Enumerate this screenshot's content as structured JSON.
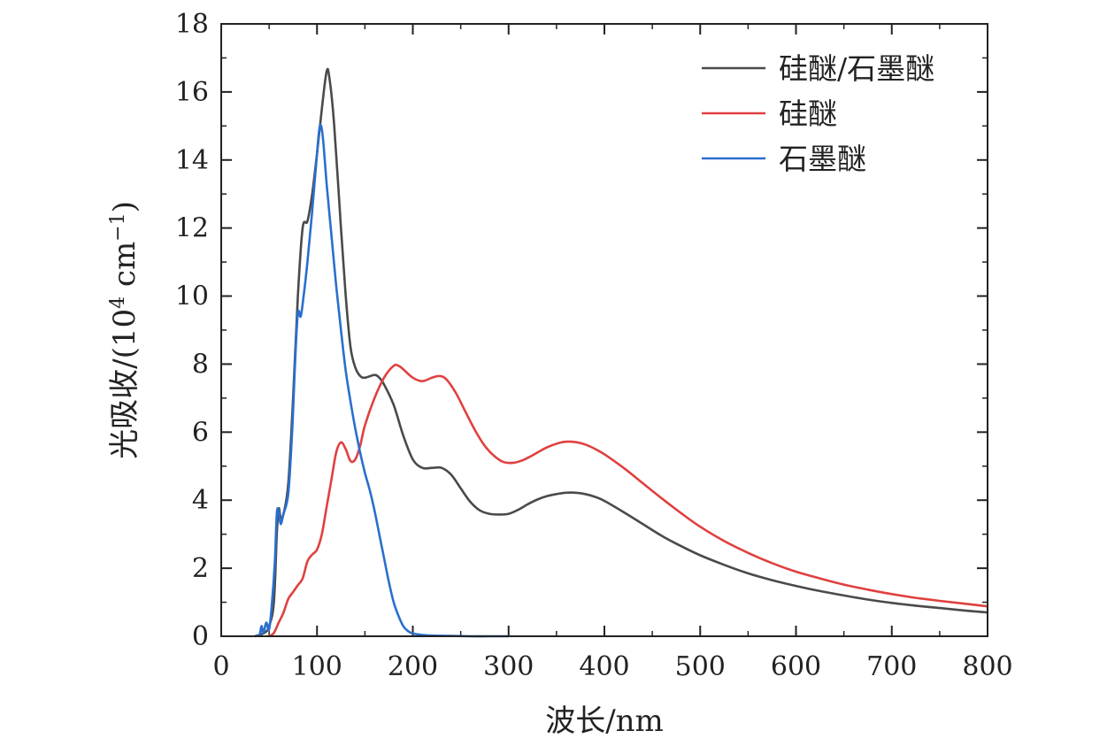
{
  "chart_data": {
    "type": "line",
    "xlabel": "波长/nm",
    "ylabel_main": "光吸收/(10",
    "ylabel_exp": "4",
    "ylabel_unit": " cm",
    "ylabel_unit_exp": "−1",
    "ylabel_close": ")",
    "xlim": [
      0,
      800
    ],
    "ylim": [
      0,
      18
    ],
    "xticks": [
      0,
      100,
      200,
      300,
      400,
      500,
      600,
      700,
      800
    ],
    "yticks": [
      0,
      2,
      4,
      6,
      8,
      10,
      12,
      14,
      16,
      18
    ],
    "grid": false,
    "legend_position": "top-right",
    "series": [
      {
        "name": "硅醚/石墨醚",
        "color": "#4a4a4a",
        "points": [
          [
            35,
            0
          ],
          [
            45,
            0.1
          ],
          [
            50,
            0.3
          ],
          [
            55,
            1.0
          ],
          [
            58,
            3.0
          ],
          [
            60,
            3.75
          ],
          [
            62,
            3.5
          ],
          [
            65,
            3.6
          ],
          [
            70,
            4.5
          ],
          [
            75,
            7.0
          ],
          [
            80,
            10.0
          ],
          [
            85,
            12.0
          ],
          [
            90,
            12.2
          ],
          [
            95,
            13.0
          ],
          [
            100,
            14.2
          ],
          [
            105,
            15.5
          ],
          [
            110,
            16.6
          ],
          [
            113,
            16.4
          ],
          [
            118,
            15.0
          ],
          [
            125,
            12.0
          ],
          [
            130,
            10.0
          ],
          [
            135,
            8.5
          ],
          [
            140,
            7.9
          ],
          [
            145,
            7.65
          ],
          [
            150,
            7.6
          ],
          [
            160,
            7.68
          ],
          [
            165,
            7.6
          ],
          [
            170,
            7.4
          ],
          [
            180,
            6.8
          ],
          [
            190,
            5.9
          ],
          [
            200,
            5.2
          ],
          [
            210,
            4.95
          ],
          [
            220,
            4.95
          ],
          [
            230,
            4.95
          ],
          [
            240,
            4.75
          ],
          [
            250,
            4.35
          ],
          [
            260,
            3.95
          ],
          [
            270,
            3.7
          ],
          [
            280,
            3.6
          ],
          [
            290,
            3.58
          ],
          [
            300,
            3.6
          ],
          [
            310,
            3.72
          ],
          [
            320,
            3.88
          ],
          [
            330,
            4.02
          ],
          [
            340,
            4.12
          ],
          [
            350,
            4.18
          ],
          [
            360,
            4.22
          ],
          [
            370,
            4.22
          ],
          [
            380,
            4.18
          ],
          [
            390,
            4.1
          ],
          [
            400,
            3.98
          ],
          [
            420,
            3.65
          ],
          [
            440,
            3.3
          ],
          [
            460,
            2.95
          ],
          [
            480,
            2.65
          ],
          [
            500,
            2.38
          ],
          [
            525,
            2.1
          ],
          [
            550,
            1.85
          ],
          [
            575,
            1.65
          ],
          [
            600,
            1.48
          ],
          [
            625,
            1.33
          ],
          [
            650,
            1.2
          ],
          [
            675,
            1.08
          ],
          [
            700,
            0.98
          ],
          [
            725,
            0.9
          ],
          [
            750,
            0.83
          ],
          [
            775,
            0.76
          ],
          [
            800,
            0.7
          ]
        ]
      },
      {
        "name": "硅醚",
        "color": "#e04040",
        "points": [
          [
            50,
            0
          ],
          [
            55,
            0.1
          ],
          [
            60,
            0.4
          ],
          [
            65,
            0.7
          ],
          [
            70,
            1.1
          ],
          [
            75,
            1.3
          ],
          [
            80,
            1.5
          ],
          [
            85,
            1.7
          ],
          [
            90,
            2.2
          ],
          [
            95,
            2.4
          ],
          [
            100,
            2.55
          ],
          [
            105,
            3.0
          ],
          [
            110,
            3.8
          ],
          [
            115,
            4.6
          ],
          [
            120,
            5.4
          ],
          [
            125,
            5.7
          ],
          [
            130,
            5.5
          ],
          [
            135,
            5.15
          ],
          [
            140,
            5.2
          ],
          [
            145,
            5.6
          ],
          [
            150,
            6.2
          ],
          [
            160,
            7.0
          ],
          [
            170,
            7.6
          ],
          [
            180,
            7.95
          ],
          [
            185,
            7.95
          ],
          [
            190,
            7.85
          ],
          [
            200,
            7.6
          ],
          [
            210,
            7.5
          ],
          [
            220,
            7.6
          ],
          [
            228,
            7.65
          ],
          [
            235,
            7.55
          ],
          [
            245,
            7.15
          ],
          [
            255,
            6.6
          ],
          [
            265,
            6.05
          ],
          [
            275,
            5.6
          ],
          [
            285,
            5.3
          ],
          [
            295,
            5.12
          ],
          [
            305,
            5.1
          ],
          [
            315,
            5.18
          ],
          [
            325,
            5.32
          ],
          [
            340,
            5.55
          ],
          [
            355,
            5.7
          ],
          [
            365,
            5.72
          ],
          [
            375,
            5.68
          ],
          [
            385,
            5.58
          ],
          [
            400,
            5.35
          ],
          [
            420,
            4.95
          ],
          [
            440,
            4.5
          ],
          [
            460,
            4.05
          ],
          [
            480,
            3.62
          ],
          [
            500,
            3.22
          ],
          [
            525,
            2.8
          ],
          [
            550,
            2.45
          ],
          [
            575,
            2.15
          ],
          [
            600,
            1.9
          ],
          [
            625,
            1.7
          ],
          [
            650,
            1.52
          ],
          [
            675,
            1.37
          ],
          [
            700,
            1.24
          ],
          [
            725,
            1.13
          ],
          [
            750,
            1.04
          ],
          [
            775,
            0.96
          ],
          [
            800,
            0.88
          ]
        ]
      },
      {
        "name": "石墨醚",
        "color": "#2a6fce",
        "points": [
          [
            35,
            0
          ],
          [
            40,
            0.05
          ],
          [
            42,
            0.3
          ],
          [
            44,
            0.1
          ],
          [
            47,
            0.4
          ],
          [
            50,
            0.2
          ],
          [
            53,
            1.0
          ],
          [
            56,
            2.2
          ],
          [
            58,
            3.6
          ],
          [
            60,
            3.7
          ],
          [
            62,
            3.3
          ],
          [
            65,
            3.6
          ],
          [
            70,
            4.2
          ],
          [
            74,
            6.0
          ],
          [
            77,
            8.0
          ],
          [
            80,
            9.5
          ],
          [
            83,
            9.4
          ],
          [
            86,
            10.0
          ],
          [
            90,
            11.0
          ],
          [
            95,
            12.5
          ],
          [
            100,
            14.2
          ],
          [
            103,
            15.0
          ],
          [
            106,
            14.7
          ],
          [
            110,
            13.3
          ],
          [
            115,
            11.8
          ],
          [
            120,
            10.3
          ],
          [
            125,
            9.0
          ],
          [
            130,
            7.8
          ],
          [
            135,
            6.9
          ],
          [
            140,
            6.1
          ],
          [
            145,
            5.4
          ],
          [
            150,
            4.8
          ],
          [
            155,
            4.3
          ],
          [
            160,
            3.7
          ],
          [
            165,
            3.0
          ],
          [
            170,
            2.3
          ],
          [
            175,
            1.6
          ],
          [
            180,
            1.0
          ],
          [
            185,
            0.6
          ],
          [
            190,
            0.3
          ],
          [
            195,
            0.15
          ],
          [
            200,
            0.08
          ],
          [
            210,
            0.04
          ],
          [
            220,
            0.02
          ],
          [
            240,
            0.01
          ],
          [
            260,
            0
          ],
          [
            280,
            0
          ],
          [
            300,
            0
          ]
        ]
      }
    ]
  }
}
